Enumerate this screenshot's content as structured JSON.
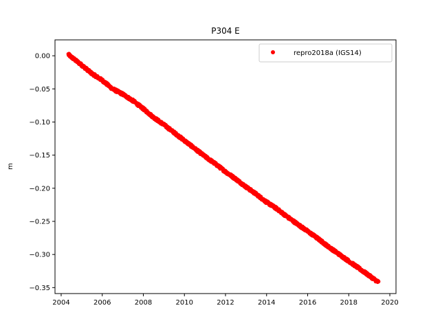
{
  "chart_data": {
    "type": "scatter",
    "title": "P304 E",
    "xlabel": "",
    "ylabel": "m",
    "xlim": [
      2003.7,
      2020.3
    ],
    "ylim": [
      -0.359,
      0.024
    ],
    "x_ticks": [
      2004,
      2006,
      2008,
      2010,
      2012,
      2014,
      2016,
      2018,
      2020
    ],
    "y_ticks": [
      0.0,
      -0.05,
      -0.1,
      -0.15,
      -0.2,
      -0.25,
      -0.3,
      -0.35
    ],
    "y_tick_labels": [
      "0.00",
      "−0.05",
      "−0.10",
      "−0.15",
      "−0.20",
      "−0.25",
      "−0.30",
      "−0.35"
    ],
    "grid": false,
    "legend_position": "top-right",
    "series": [
      {
        "name": "repro2018a (IGS14)",
        "color": "#ff0000",
        "marker": "circle",
        "start": {
          "x": 2004.35,
          "y": 0.002
        },
        "end": {
          "x": 2019.45,
          "y": -0.342
        },
        "x": [
          2004.35,
          2004.5,
          2005.0,
          2005.5,
          2006.0,
          2006.5,
          2007.0,
          2007.5,
          2008.0,
          2008.5,
          2009.0,
          2009.5,
          2010.0,
          2010.5,
          2011.0,
          2011.5,
          2012.0,
          2012.5,
          2013.0,
          2013.5,
          2014.0,
          2014.5,
          2015.0,
          2015.5,
          2016.0,
          2016.5,
          2017.0,
          2017.5,
          2018.0,
          2018.5,
          2019.0,
          2019.45
        ],
        "y": [
          0.002,
          -0.002,
          -0.014,
          -0.027,
          -0.037,
          -0.05,
          -0.058,
          -0.068,
          -0.08,
          -0.093,
          -0.104,
          -0.116,
          -0.128,
          -0.14,
          -0.152,
          -0.163,
          -0.175,
          -0.186,
          -0.198,
          -0.209,
          -0.221,
          -0.231,
          -0.243,
          -0.254,
          -0.265,
          -0.276,
          -0.288,
          -0.299,
          -0.31,
          -0.321,
          -0.332,
          -0.342
        ]
      }
    ]
  }
}
